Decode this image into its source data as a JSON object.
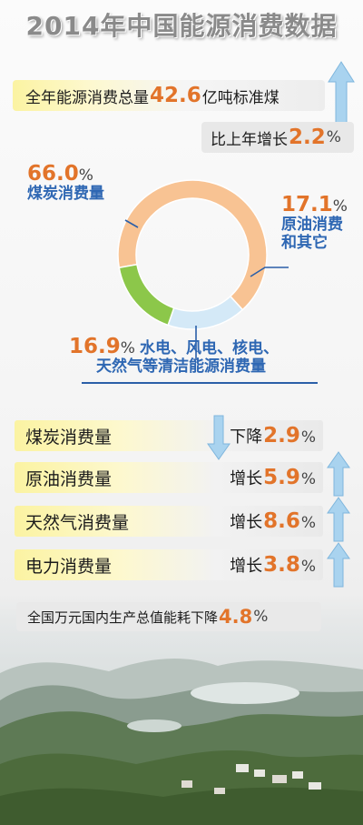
{
  "title": "2014年中国能源消费数据",
  "total": {
    "prefix": "全年能源消费总量",
    "value": "42.6",
    "suffix": "亿吨标准煤"
  },
  "growth": {
    "prefix": "比上年增长",
    "value": "2.2",
    "unit": "%"
  },
  "colors": {
    "coal": "#f8c393",
    "oil": "#d4e9f7",
    "clean": "#8cc74a",
    "accent": "#e2742a",
    "label": "#2e67b3",
    "arrow": "#a9d3ef"
  },
  "chart_data": {
    "type": "pie",
    "donut": true,
    "slices": [
      {
        "label": "煤炭消费量",
        "value": 66.0
      },
      {
        "label": "原油消费和其它",
        "value": 17.1
      },
      {
        "label": "水电、风电、核电、天然气等清洁能源消费量",
        "value": 16.9
      }
    ]
  },
  "slice_labels": {
    "coal": {
      "value": "66.0",
      "unit": "%",
      "name": "煤炭消费量"
    },
    "oil": {
      "value": "17.1",
      "unit": "%",
      "name1": "原油消费",
      "name2": "和其它"
    },
    "clean": {
      "value": "16.9",
      "unit": "%",
      "name1": "水电、风电、核电、",
      "name2": "天然气等清洁能源消费量"
    }
  },
  "rows": [
    {
      "label": "煤炭消费量",
      "direction": "down",
      "change_word": "下降",
      "value": "2.9",
      "unit": "%"
    },
    {
      "label": "原油消费量",
      "direction": "up",
      "change_word": "增长",
      "value": "5.9",
      "unit": "%"
    },
    {
      "label": "天然气消费量",
      "direction": "up",
      "change_word": "增长",
      "value": "8.6",
      "unit": "%"
    },
    {
      "label": "电力消费量",
      "direction": "up",
      "change_word": "增长",
      "value": "3.8",
      "unit": "%"
    }
  ],
  "intensity": {
    "prefix": "全国万元国内生产总值能耗下降",
    "value": "4.8",
    "unit": "%"
  }
}
